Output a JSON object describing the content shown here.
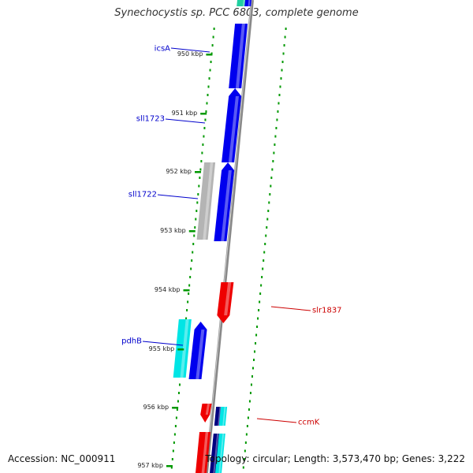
{
  "title": "Synechocystis sp. PCC 6803, complete genome",
  "footer": {
    "accession": "Accession: NC_000911",
    "summary": "Topology: circular; Length: 3,573,470 bp; Genes: 3,222"
  },
  "colors": {
    "forward": "#0000ee",
    "reverse": "#ee0000",
    "cyan": "#00e5e5",
    "gray": "#b4b4b4",
    "teal": "#20d0a0",
    "navy": "#000080",
    "backbone": "#888888",
    "dots": "#009900",
    "label_blue": "#0000cc",
    "label_red": "#cc0000"
  },
  "ticks": [
    {
      "kbp": 950,
      "label": "950 kbp"
    },
    {
      "kbp": 951,
      "label": "951 kbp"
    },
    {
      "kbp": 952,
      "label": "952 kbp"
    },
    {
      "kbp": 953,
      "label": "953 kbp"
    },
    {
      "kbp": 954,
      "label": "954 kbp"
    },
    {
      "kbp": 955,
      "label": "955 kbp"
    },
    {
      "kbp": 956,
      "label": "956 kbp"
    },
    {
      "kbp": 957,
      "label": "957 kbp"
    }
  ],
  "gene_labels": [
    {
      "name": "icsA",
      "strand": "forward"
    },
    {
      "name": "sll1723",
      "strand": "forward"
    },
    {
      "name": "sll1722",
      "strand": "forward"
    },
    {
      "name": "pdhB",
      "strand": "forward"
    },
    {
      "name": "slr1837",
      "strand": "reverse"
    },
    {
      "name": "ccmK",
      "strand": "reverse"
    }
  ]
}
